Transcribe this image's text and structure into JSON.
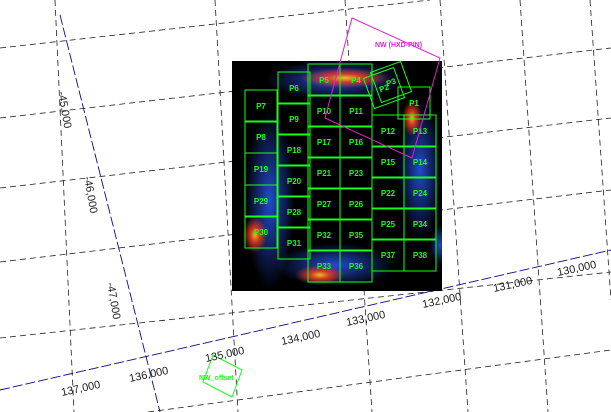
{
  "colors": {
    "background": "#ffffff",
    "grid_dashed": "#222222",
    "grid_axis": "#0a0a8f",
    "image_bg": "#000000",
    "pointing_box": "#19ff19",
    "hxd_box": "#e020d0",
    "offset_box": "#19ff19"
  },
  "grid": {
    "dec_labels": [
      "-45,000",
      "-46,000",
      "-47,000"
    ],
    "ra_labels": [
      "137,000",
      "136,000",
      "135,000",
      "134,000",
      "133,000",
      "132,000",
      "131,000",
      "130,000"
    ]
  },
  "hxd": {
    "label": "NW (HXD-PIN)"
  },
  "offset": {
    "label": "NW_offset"
  },
  "pointings": [
    "P1",
    "P2",
    "P3",
    "P4",
    "P5",
    "P6",
    "P7",
    "P8",
    "P9",
    "P10",
    "P11",
    "P12",
    "P13",
    "P14",
    "P15",
    "P16",
    "P17",
    "P18",
    "P19",
    "P20",
    "P21",
    "P22",
    "P23",
    "P24",
    "P25",
    "P26",
    "P27",
    "P28",
    "P29",
    "P30",
    "P31",
    "P32",
    "P33",
    "P34",
    "P35",
    "P36",
    "P37",
    "P38"
  ]
}
